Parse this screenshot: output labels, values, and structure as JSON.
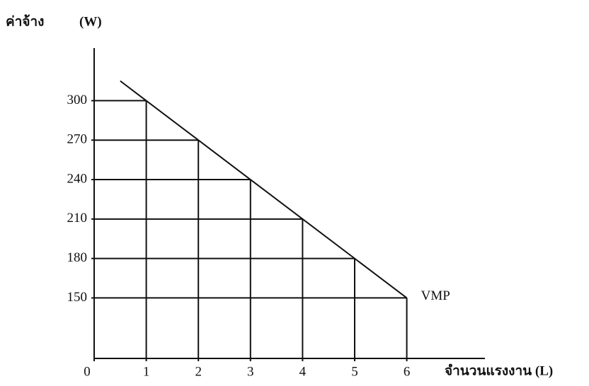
{
  "chart_data": {
    "type": "line",
    "y_label": "ค่าจ้าง",
    "y_unit": "(W)",
    "x_label": "จำนวนแรงงาน (L)",
    "annotation": "VMP",
    "x": [
      1,
      2,
      3,
      4,
      5,
      6
    ],
    "series": [
      {
        "name": "VMP",
        "color": "#111111",
        "values": [
          300,
          270,
          240,
          210,
          180,
          150
        ]
      }
    ],
    "xlim": [
      0,
      7.5
    ],
    "xticks": [
      0,
      1,
      2,
      3,
      4,
      5,
      6
    ],
    "ylim": [
      104,
      340
    ],
    "yticks": [
      150,
      180,
      210,
      240,
      270,
      300
    ],
    "guides": true
  }
}
